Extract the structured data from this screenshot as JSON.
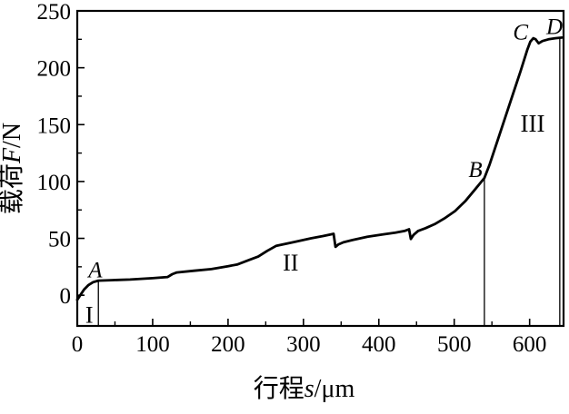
{
  "figure": {
    "background_color": "#ffffff",
    "ink_color": "#000000"
  },
  "chart_data": {
    "type": "line",
    "title": "",
    "xlabel": "行程s/μm",
    "xlabel_parts": {
      "prefix": "行程",
      "variable": "s",
      "suffix": "/μm"
    },
    "ylabel": "载荷F/N",
    "ylabel_parts": {
      "prefix": "载荷",
      "variable": "F",
      "suffix": "/N"
    },
    "xlim": [
      0,
      645
    ],
    "ylim": [
      -27,
      250
    ],
    "grid": false,
    "legend": "none",
    "x_ticks_major": [
      0,
      100,
      200,
      300,
      400,
      500,
      600
    ],
    "x_ticks_minor": [
      50,
      150,
      250,
      350,
      450,
      550
    ],
    "y_ticks_major": [
      0,
      50,
      100,
      150,
      200,
      250
    ],
    "y_ticks_minor": [
      25,
      75,
      125,
      175,
      225
    ],
    "series": [
      {
        "name": "load-vs-stroke-curve",
        "color": "#000000",
        "points": [
          [
            0,
            -4
          ],
          [
            4,
            0
          ],
          [
            9,
            5
          ],
          [
            15,
            9
          ],
          [
            21,
            11.5
          ],
          [
            28,
            12.8
          ],
          [
            45,
            13.2
          ],
          [
            70,
            13.8
          ],
          [
            100,
            15
          ],
          [
            120,
            16
          ],
          [
            126,
            18.5
          ],
          [
            132,
            20
          ],
          [
            155,
            21.5
          ],
          [
            178,
            23
          ],
          [
            200,
            25.5
          ],
          [
            212,
            27
          ],
          [
            228,
            31
          ],
          [
            240,
            34
          ],
          [
            252,
            39
          ],
          [
            264,
            43.5
          ],
          [
            286,
            46.5
          ],
          [
            310,
            50
          ],
          [
            326,
            52
          ],
          [
            336,
            53.5
          ],
          [
            340,
            54
          ],
          [
            342.5,
            42.5
          ],
          [
            346,
            44.5
          ],
          [
            353,
            46.5
          ],
          [
            365,
            48.5
          ],
          [
            385,
            51.5
          ],
          [
            405,
            53.5
          ],
          [
            422,
            55
          ],
          [
            434,
            56.5
          ],
          [
            440,
            58
          ],
          [
            442.5,
            49.5
          ],
          [
            446,
            53
          ],
          [
            452,
            56.5
          ],
          [
            462,
            59
          ],
          [
            474,
            62.5
          ],
          [
            487,
            67.5
          ],
          [
            501,
            74
          ],
          [
            515,
            83
          ],
          [
            527,
            92.5
          ],
          [
            540,
            103
          ],
          [
            547,
            115
          ],
          [
            560,
            141
          ],
          [
            575,
            171
          ],
          [
            588,
            197
          ],
          [
            597,
            216
          ],
          [
            601,
            223
          ],
          [
            605,
            226
          ],
          [
            608,
            225
          ],
          [
            612,
            221.5
          ],
          [
            617,
            223.5
          ],
          [
            625,
            225
          ],
          [
            634,
            226
          ],
          [
            643,
            226.5
          ]
        ]
      }
    ],
    "drop_lines": [
      {
        "label": "A",
        "x": 28,
        "y_top": 12.8
      },
      {
        "label": "B",
        "x": 540,
        "y_top": 103
      },
      {
        "label": "D",
        "x": 640,
        "y_top": 226
      }
    ],
    "annotations": [
      {
        "text": "A",
        "x": 24,
        "y": 23,
        "style": "italic",
        "size": 25
      },
      {
        "text": "B",
        "x": 528,
        "y": 111,
        "style": "italic",
        "size": 25
      },
      {
        "text": "C",
        "x": 588,
        "y": 232,
        "style": "italic",
        "size": 25
      },
      {
        "text": "D",
        "x": 633,
        "y": 237,
        "style": "italic",
        "size": 25
      },
      {
        "text": "I",
        "x": 16,
        "y": -17,
        "style": "normal",
        "size": 26
      },
      {
        "text": "II",
        "x": 283,
        "y": 29,
        "style": "normal",
        "size": 26
      },
      {
        "text": "III",
        "x": 604,
        "y": 151,
        "style": "normal",
        "size": 27
      }
    ]
  }
}
